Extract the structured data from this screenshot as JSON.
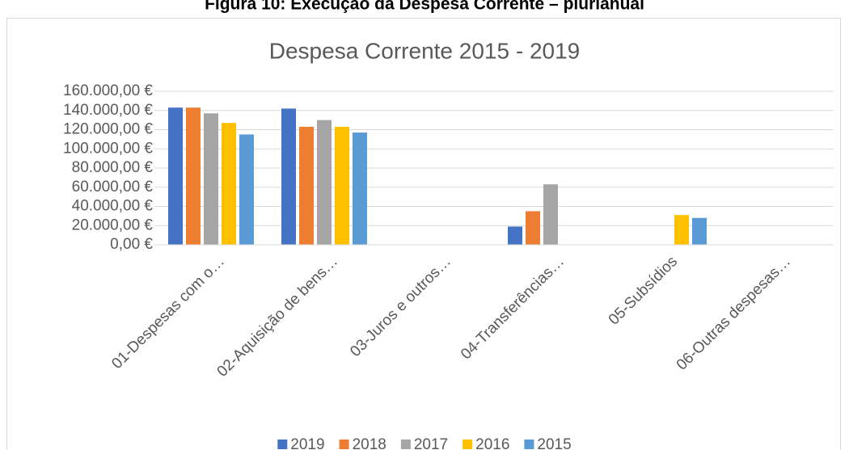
{
  "caption": "Figura 10: Execução da Despesa Corrente – plurianual",
  "chart_data": {
    "type": "bar",
    "title": "Despesa Corrente 2015 - 2019",
    "categories": [
      "01-Despesas com o…",
      "02-Aquisição de bens…",
      "03-Juros e outros…",
      "04-Transferências…",
      "05-Subsídios",
      "06-Outras despesas…"
    ],
    "series": [
      {
        "name": "2019",
        "color": "#4472c4",
        "values": [
          143000,
          142000,
          0,
          19000,
          0,
          0
        ]
      },
      {
        "name": "2018",
        "color": "#ed7d31",
        "values": [
          143000,
          123000,
          0,
          35000,
          0,
          0
        ]
      },
      {
        "name": "2017",
        "color": "#a5a5a5",
        "values": [
          137000,
          130000,
          0,
          63000,
          0,
          0
        ]
      },
      {
        "name": "2016",
        "color": "#ffc000",
        "values": [
          127000,
          123000,
          0,
          0,
          31000,
          0
        ]
      },
      {
        "name": "2015",
        "color": "#5b9bd5",
        "values": [
          115000,
          117000,
          0,
          0,
          28000,
          0
        ]
      }
    ],
    "ylim": [
      0,
      160000
    ],
    "yticks": [
      {
        "value": 0,
        "label": "0,00 €"
      },
      {
        "value": 20000,
        "label": "20.000,00 €"
      },
      {
        "value": 40000,
        "label": "40.000,00 €"
      },
      {
        "value": 60000,
        "label": "60.000,00 €"
      },
      {
        "value": 80000,
        "label": "80.000,00 €"
      },
      {
        "value": 100000,
        "label": "100.000,00 €"
      },
      {
        "value": 120000,
        "label": "120.000,00 €"
      },
      {
        "value": 140000,
        "label": "140.000,00 €"
      },
      {
        "value": 160000,
        "label": "160.000,00 €"
      }
    ],
    "grid": true,
    "legend": "bottom"
  }
}
